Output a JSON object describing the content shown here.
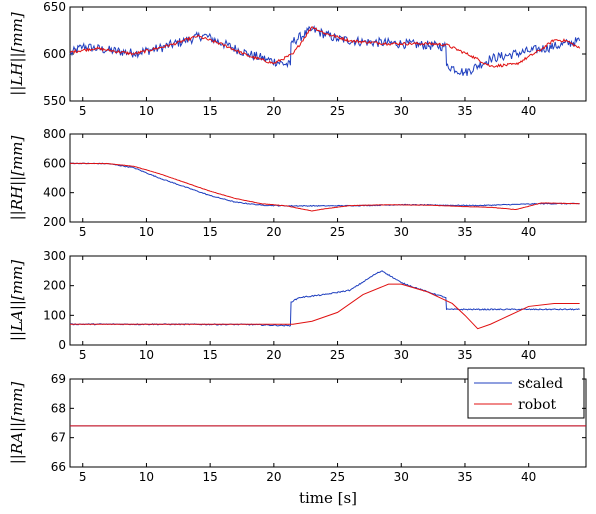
{
  "chart_data": [
    {
      "type": "line",
      "ylabel": "||LH||[mm]",
      "xlim": [
        4,
        44.5
      ],
      "ylim": [
        550,
        650
      ],
      "xticks": [
        5,
        10,
        15,
        20,
        25,
        30,
        35,
        40
      ],
      "yticks": [
        550,
        600,
        650
      ],
      "series": [
        {
          "name": "scaled",
          "color": "#1f3fbf",
          "noise": 5,
          "x": [
            4,
            5,
            7,
            9,
            11,
            13,
            14.5,
            16,
            18,
            19.5,
            21.3,
            21.35,
            23,
            25,
            27,
            30,
            33.5,
            33.55,
            35,
            37,
            40,
            42,
            44
          ],
          "y": [
            600,
            608,
            604,
            601,
            606,
            614,
            620,
            611,
            600,
            594,
            588,
            612,
            626,
            616,
            613,
            611,
            608,
            588,
            580,
            595,
            603,
            608,
            614
          ]
        },
        {
          "name": "robot",
          "color": "#e01010",
          "noise": 1.5,
          "x": [
            4,
            6,
            9,
            12,
            14,
            16,
            18,
            20,
            21.5,
            23,
            24,
            26,
            29,
            32,
            33.5,
            35.5,
            37,
            39,
            41,
            42,
            43,
            44
          ],
          "y": [
            602,
            606,
            600,
            610,
            619,
            610,
            598,
            590,
            600,
            629,
            622,
            614,
            611,
            611,
            610,
            598,
            587,
            589,
            605,
            615,
            614,
            606
          ]
        }
      ]
    },
    {
      "type": "line",
      "ylabel": "||RH||[mm]",
      "xlim": [
        4,
        44.5
      ],
      "ylim": [
        200,
        800
      ],
      "xticks": [
        5,
        10,
        15,
        20,
        25,
        30,
        35,
        40
      ],
      "yticks": [
        200,
        400,
        600,
        800
      ],
      "series": [
        {
          "name": "scaled",
          "color": "#1f3fbf",
          "noise": 3,
          "x": [
            4,
            7,
            9,
            11,
            13,
            15,
            17,
            19,
            21,
            24,
            27,
            30,
            33,
            36,
            39,
            41,
            44
          ],
          "y": [
            600,
            598,
            570,
            500,
            440,
            380,
            335,
            315,
            310,
            310,
            312,
            318,
            315,
            312,
            320,
            325,
            325
          ]
        },
        {
          "name": "robot",
          "color": "#e01010",
          "noise": 1,
          "x": [
            4,
            7,
            9,
            11,
            13,
            15,
            17,
            19,
            21,
            23,
            24,
            26,
            29,
            32,
            35,
            37,
            39,
            41,
            44
          ],
          "y": [
            600,
            598,
            580,
            530,
            470,
            410,
            360,
            325,
            310,
            275,
            290,
            312,
            318,
            315,
            305,
            300,
            285,
            330,
            325
          ]
        }
      ]
    },
    {
      "type": "line",
      "ylabel": "||LA||[mm]",
      "xlim": [
        4,
        44.5
      ],
      "ylim": [
        0,
        300
      ],
      "xticks": [
        5,
        10,
        15,
        20,
        25,
        30,
        35,
        40
      ],
      "yticks": [
        0,
        100,
        200,
        300
      ],
      "series": [
        {
          "name": "scaled",
          "color": "#1f3fbf",
          "noise": 2,
          "x": [
            4,
            10,
            18,
            21.3,
            21.35,
            22,
            24,
            26,
            28,
            28.5,
            30,
            32,
            33.5,
            33.55,
            36,
            40,
            44
          ],
          "y": [
            70,
            70,
            69,
            65,
            145,
            160,
            170,
            185,
            240,
            250,
            210,
            180,
            160,
            120,
            120,
            120,
            120
          ]
        },
        {
          "name": "robot",
          "color": "#e01010",
          "noise": 0,
          "x": [
            4,
            10,
            18,
            21.5,
            23,
            25,
            27,
            29,
            30,
            32,
            34,
            35,
            36,
            37,
            38,
            40,
            42,
            44
          ],
          "y": [
            70,
            70,
            70,
            70,
            80,
            110,
            170,
            205,
            205,
            180,
            140,
            100,
            55,
            70,
            90,
            130,
            140,
            140
          ]
        }
      ]
    },
    {
      "type": "line",
      "ylabel": "||RA||[mm]",
      "xlabel": "time [s]",
      "xlim": [
        4,
        44.5
      ],
      "ylim": [
        66,
        69
      ],
      "xticks": [
        5,
        10,
        15,
        20,
        25,
        30,
        35,
        40
      ],
      "yticks": [
        66,
        67,
        68,
        69
      ],
      "legend": {
        "position": "top-right",
        "entries": [
          "scaled",
          "robot"
        ]
      },
      "series": [
        {
          "name": "scaled",
          "color": "#1f3fbf",
          "noise": 0,
          "x": [
            4,
            44.5
          ],
          "y": [
            67.4,
            67.4
          ]
        },
        {
          "name": "robot",
          "color": "#e01010",
          "noise": 0,
          "x": [
            4,
            44.5
          ],
          "y": [
            67.4,
            67.4
          ]
        }
      ]
    }
  ]
}
